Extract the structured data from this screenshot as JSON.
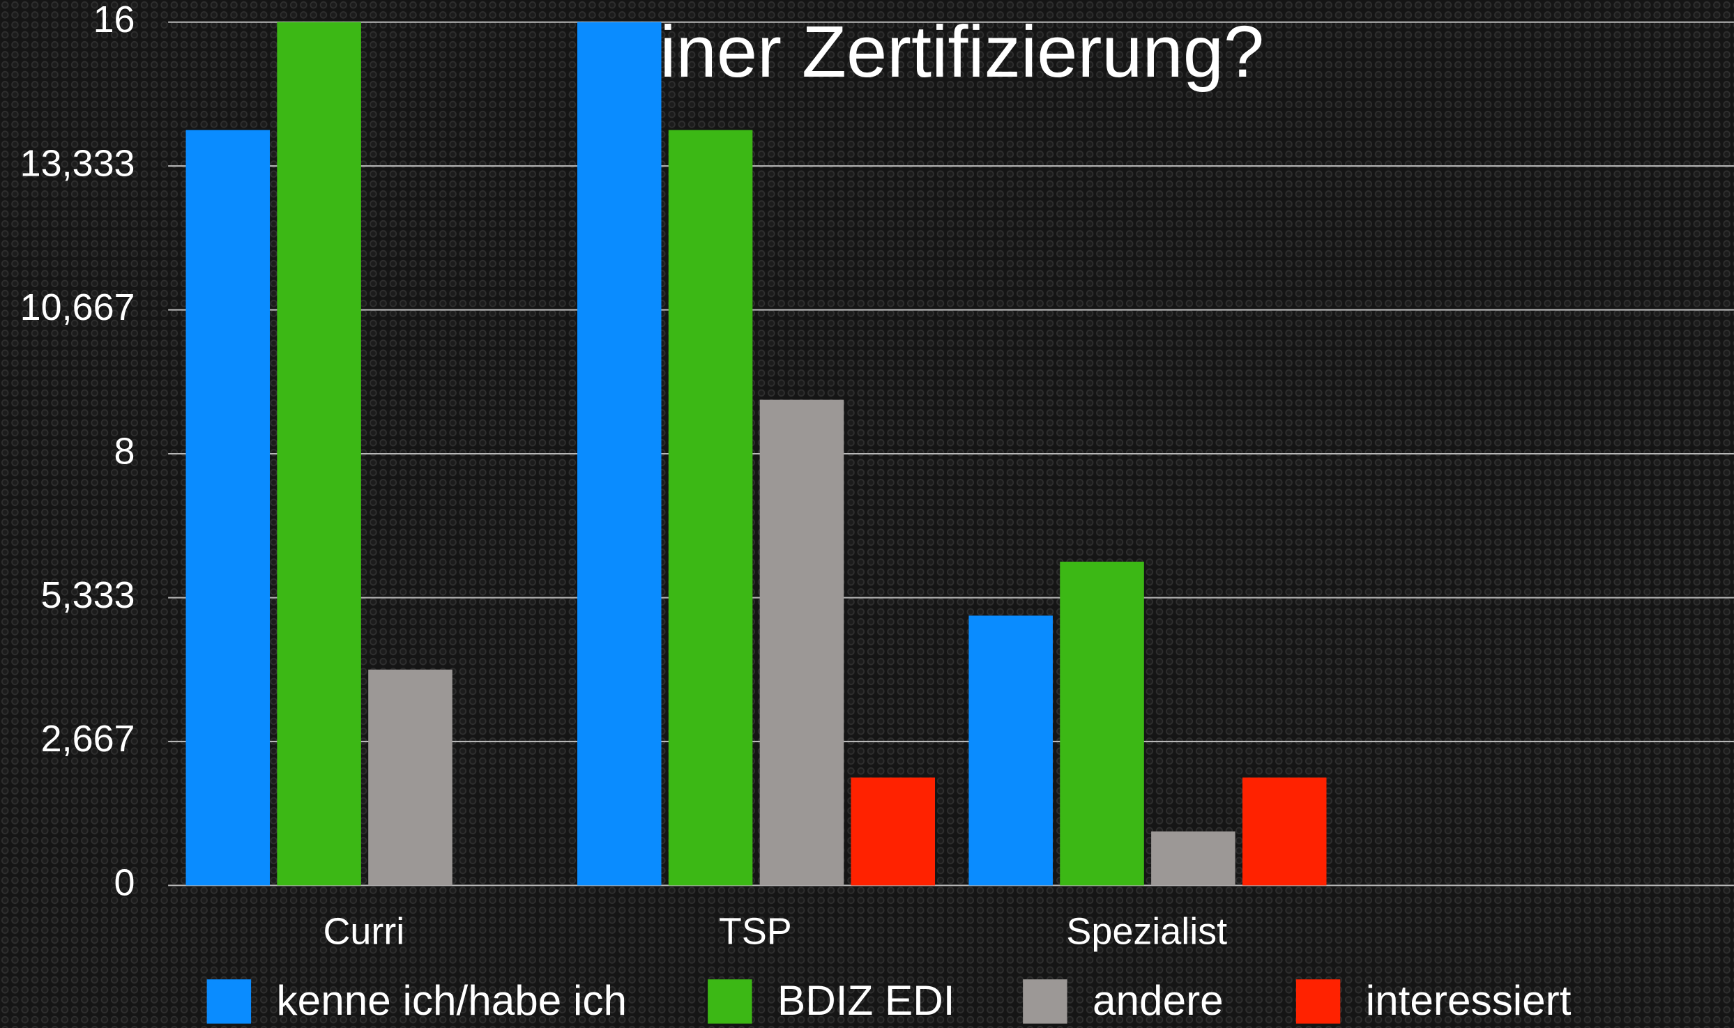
{
  "chart_data": {
    "type": "bar",
    "title": "einer Zertifizierung?",
    "categories": [
      "Curri",
      "TSP",
      "Spezialist"
    ],
    "series": [
      {
        "name": "kenne ich/habe ich",
        "color": "#0a8cff",
        "values": [
          14,
          16,
          5
        ]
      },
      {
        "name": "BDIZ EDI",
        "color": "#3cb815",
        "values": [
          16,
          14,
          6
        ]
      },
      {
        "name": "andere",
        "color": "#9c9896",
        "values": [
          4,
          9,
          1
        ]
      },
      {
        "name": "interessiert",
        "color": "#ff2200",
        "values": [
          null,
          2,
          2
        ]
      }
    ],
    "ylim": [
      0,
      16
    ],
    "yticks": [
      0,
      {
        "value": 2.667,
        "label": "2,667"
      },
      {
        "value": 5.333,
        "label": "5,333"
      },
      8,
      {
        "value": 10.667,
        "label": "10,667"
      },
      {
        "value": 13.333,
        "label": "13,333"
      },
      16
    ],
    "grid": true,
    "legend": "bottom"
  }
}
